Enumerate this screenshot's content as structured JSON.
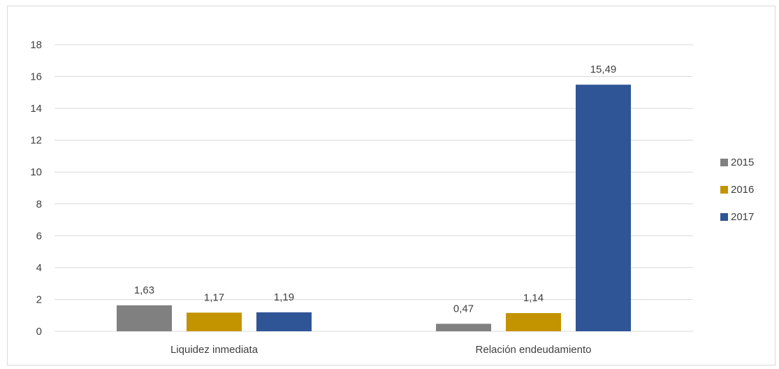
{
  "chart_data": {
    "type": "bar",
    "title": "",
    "xlabel": "",
    "ylabel": "",
    "categories": [
      "Liquidez inmediata",
      "Relación endeudamiento"
    ],
    "series": [
      {
        "name": "2015",
        "values": [
          1.63,
          0.47
        ],
        "labels": [
          "1,63",
          "0,47"
        ],
        "color": "#808080"
      },
      {
        "name": "2016",
        "values": [
          1.17,
          1.14
        ],
        "labels": [
          "1,17",
          "1,14"
        ],
        "color": "#C39300"
      },
      {
        "name": "2017",
        "values": [
          1.19,
          15.49
        ],
        "labels": [
          "1,19",
          "15,49"
        ],
        "color": "#2F5597"
      }
    ],
    "ylim": [
      0,
      18
    ],
    "yticks": [
      "0",
      "2",
      "4",
      "6",
      "8",
      "10",
      "12",
      "14",
      "16",
      "18"
    ],
    "grid": true,
    "legend_position": "right"
  }
}
